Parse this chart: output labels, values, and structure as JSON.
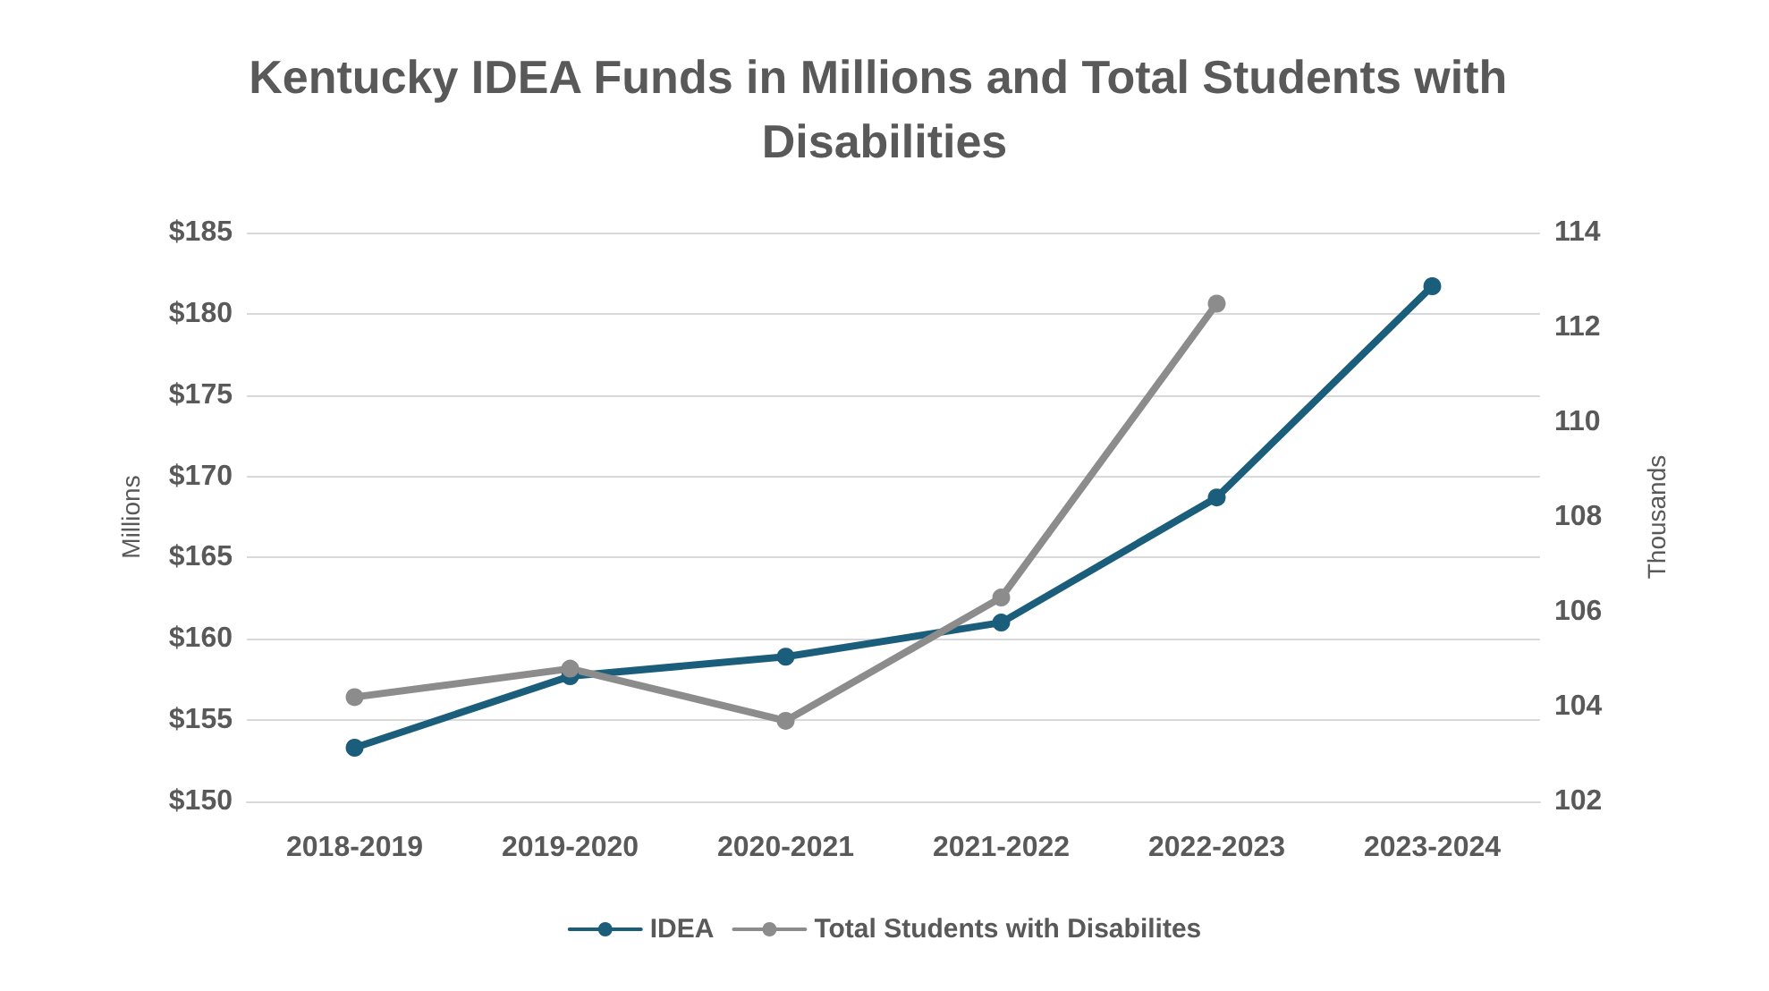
{
  "chart_data": {
    "type": "line",
    "title": "Kentucky IDEA Funds in Millions and Total Students with Disabilities",
    "categories": [
      "2018-2019",
      "2019-2020",
      "2020-2021",
      "2021-2022",
      "2022-2023",
      "2023-2024"
    ],
    "series": [
      {
        "name": "IDEA",
        "color": "#1b5e7b",
        "values": [
          153.3,
          157.7,
          158.9,
          161.0,
          168.7,
          181.7
        ]
      },
      {
        "name": "Total Students with Disabilites",
        "color": "#8c8c8c",
        "axis": "y2",
        "values": [
          104.2,
          104.8,
          103.7,
          106.3,
          112.5,
          null
        ]
      }
    ],
    "ylabel": "Millions",
    "y2label": "Thousands",
    "ylim": [
      150,
      185
    ],
    "yticks": [
      {
        "value": 150,
        "label": "$150"
      },
      {
        "value": 155,
        "label": "$155"
      },
      {
        "value": 160,
        "label": "$160"
      },
      {
        "value": 165,
        "label": "$165"
      },
      {
        "value": 170,
        "label": "$170"
      },
      {
        "value": 175,
        "label": "$175"
      },
      {
        "value": 180,
        "label": "$180"
      },
      {
        "value": 185,
        "label": "$185"
      }
    ],
    "y2lim": [
      102,
      114
    ],
    "y2ticks": [
      102,
      104,
      106,
      108,
      110,
      112,
      114
    ],
    "grid": "y",
    "legend": "bottom",
    "marker": "circle",
    "line_style": "solid"
  }
}
